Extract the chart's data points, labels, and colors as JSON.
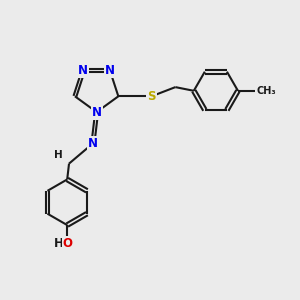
{
  "background_color": "#ebebeb",
  "bond_color": "#1a1a1a",
  "bond_width": 1.5,
  "atom_colors": {
    "N": "#0000ee",
    "S": "#bbaa00",
    "O": "#dd0000",
    "C": "#1a1a1a",
    "H": "#1a1a1a"
  },
  "font_size": 8.5,
  "figsize": [
    3.0,
    3.0
  ],
  "dpi": 100
}
